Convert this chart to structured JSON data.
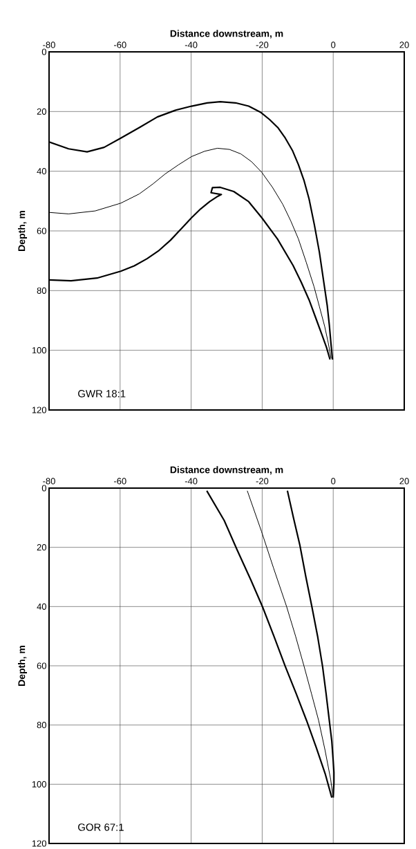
{
  "chart_data": [
    {
      "type": "line",
      "xlabel": "Distance downstream, m",
      "ylabel": "Depth, m",
      "xlim": [
        -80,
        20
      ],
      "xticks": [
        -80,
        -60,
        -40,
        -20,
        0,
        20
      ],
      "ylim": [
        120,
        0
      ],
      "yticks": [
        0,
        20,
        40,
        60,
        80,
        100,
        120
      ],
      "grid": true,
      "annotations": [
        "GWR 18:1"
      ],
      "series": [
        {
          "color": "#000000",
          "x": [
            -80,
            -74.5,
            -69.3,
            -64.5,
            -59.8,
            -54.5,
            -49.5,
            -44.5,
            -39.9,
            -35.5,
            -31.8,
            -27.5,
            -23.8,
            -20.5,
            -17.9,
            -15.5,
            -13.5,
            -11.5,
            -9.8,
            -8.2,
            -6.8,
            -5.3,
            -3.9,
            -2.8,
            -1.7,
            -1.1,
            -0.6,
            -0.2
          ],
          "values": [
            30.2,
            32.5,
            33.5,
            32,
            28.9,
            25.3,
            21.8,
            19.6,
            18.2,
            17.1,
            16.7,
            17.1,
            18.2,
            20.2,
            22.7,
            25.5,
            28.9,
            33,
            37.8,
            43.2,
            49.3,
            58,
            67.1,
            76,
            84.9,
            91.5,
            98.2,
            103.1
          ]
        },
        {
          "color": "#000000",
          "x": [
            -80,
            -74.5,
            -67,
            -59.8,
            -54.6,
            -50.8,
            -47.3,
            -43.5,
            -39.9,
            -36.2,
            -32.6,
            -29.2,
            -26,
            -23,
            -20.1,
            -17.1,
            -14.2,
            -11.9,
            -9.8,
            -7.6,
            -5.4,
            -3.9,
            -2.4,
            -1.4,
            -0.6
          ],
          "values": [
            53.8,
            54.3,
            53.3,
            50.7,
            47.6,
            44.3,
            40.9,
            37.8,
            35.1,
            33.3,
            32.3,
            32.7,
            34.2,
            36.8,
            40.4,
            45.4,
            51.1,
            56.8,
            62.7,
            70.5,
            78.7,
            85.3,
            92,
            97.5,
            102.7
          ]
        },
        {
          "color": "#000000",
          "x": [
            -80,
            -73.8,
            -66.5,
            -59.8,
            -56,
            -52.4,
            -49,
            -45.8,
            -42.8,
            -39.9,
            -37.3,
            -34.8,
            -32.8,
            -31.5,
            -34.4,
            -34,
            -31.8,
            -28,
            -23.8,
            -20.1,
            -15.7,
            -11.3,
            -9,
            -6.8,
            -5,
            -3.2,
            -1.9,
            -0.9
          ],
          "values": [
            76.4,
            76.7,
            75.8,
            73.5,
            71.7,
            69.3,
            66.5,
            63.1,
            59.3,
            55.6,
            52.6,
            50.2,
            48.6,
            47.8,
            47.2,
            45.5,
            45.4,
            46.8,
            50.2,
            55.6,
            62.7,
            71.6,
            77.2,
            83.1,
            88.9,
            94.7,
            99,
            103.1
          ]
        }
      ]
    },
    {
      "type": "line",
      "xlabel": "Distance downstream, m",
      "ylabel": "Depth, m",
      "xlim": [
        -80,
        20
      ],
      "xticks": [
        -80,
        -60,
        -40,
        -20,
        0,
        20
      ],
      "ylim": [
        120,
        0
      ],
      "yticks": [
        0,
        20,
        40,
        60,
        80,
        100,
        120
      ],
      "grid": true,
      "annotations": [
        "GOR 67:1"
      ],
      "series": [
        {
          "color": "#000000",
          "x": [
            -12.9,
            -11.2,
            -9.4,
            -7.7,
            -6.0,
            -4.4,
            -3.0,
            -2.0,
            -1.1,
            -0.4,
            0,
            0.2,
            0.2,
            0
          ],
          "values": [
            0.9,
            10,
            19.2,
            30,
            40.1,
            50,
            60.2,
            69.5,
            78.5,
            85.5,
            92.2,
            96,
            99.5,
            104.5
          ]
        },
        {
          "color": "#000000",
          "x": [
            -24.2,
            -20.2,
            -16.8,
            -13.1,
            -10.6,
            -8.2,
            -6.1,
            -4.1,
            -2.3,
            -0.7,
            -0.1
          ],
          "values": [
            0.9,
            14.6,
            27,
            40.1,
            50,
            60.2,
            69.5,
            78.5,
            88.5,
            98.5,
            104
          ]
        },
        {
          "color": "#000000",
          "x": [
            -35.6,
            -30.7,
            -27,
            -23.2,
            -19.9,
            -16.7,
            -13.5,
            -10.4,
            -7.5,
            -4.8,
            -2.2,
            -0.4
          ],
          "values": [
            0.9,
            10.9,
            21,
            31,
            40.1,
            50,
            60.2,
            69.5,
            78.5,
            87.5,
            96.7,
            104.5
          ]
        }
      ]
    }
  ]
}
